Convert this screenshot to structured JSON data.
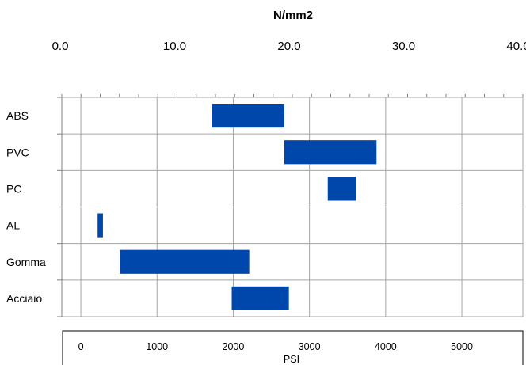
{
  "chart_data": {
    "type": "bar",
    "orientation": "horizontal-range",
    "title": "",
    "subtitle": "N/mm2",
    "xlabel": "PSI",
    "top_axis": {
      "unit": "N/mm2",
      "range": [
        0,
        40
      ],
      "ticks": [
        "0.0",
        "10.0",
        "20.0",
        "30.0",
        "40.0"
      ]
    },
    "bottom_axis": {
      "unit": "PSI",
      "range": [
        -250,
        5800
      ],
      "ticks": [
        "0",
        "1000",
        "2000",
        "3000",
        "4000",
        "5000"
      ]
    },
    "categories": [
      "ABS",
      "PVC",
      "PC",
      "AL",
      "Gomma",
      "Acciaio"
    ],
    "series": [
      {
        "values": [
          [
            1720,
            2670
          ],
          [
            2670,
            3880
          ],
          [
            3240,
            3610
          ],
          [
            220,
            290
          ],
          [
            510,
            2210
          ],
          [
            1980,
            2730
          ]
        ]
      }
    ],
    "bar_color": "#0047ab",
    "grid": true,
    "legend": "none"
  }
}
